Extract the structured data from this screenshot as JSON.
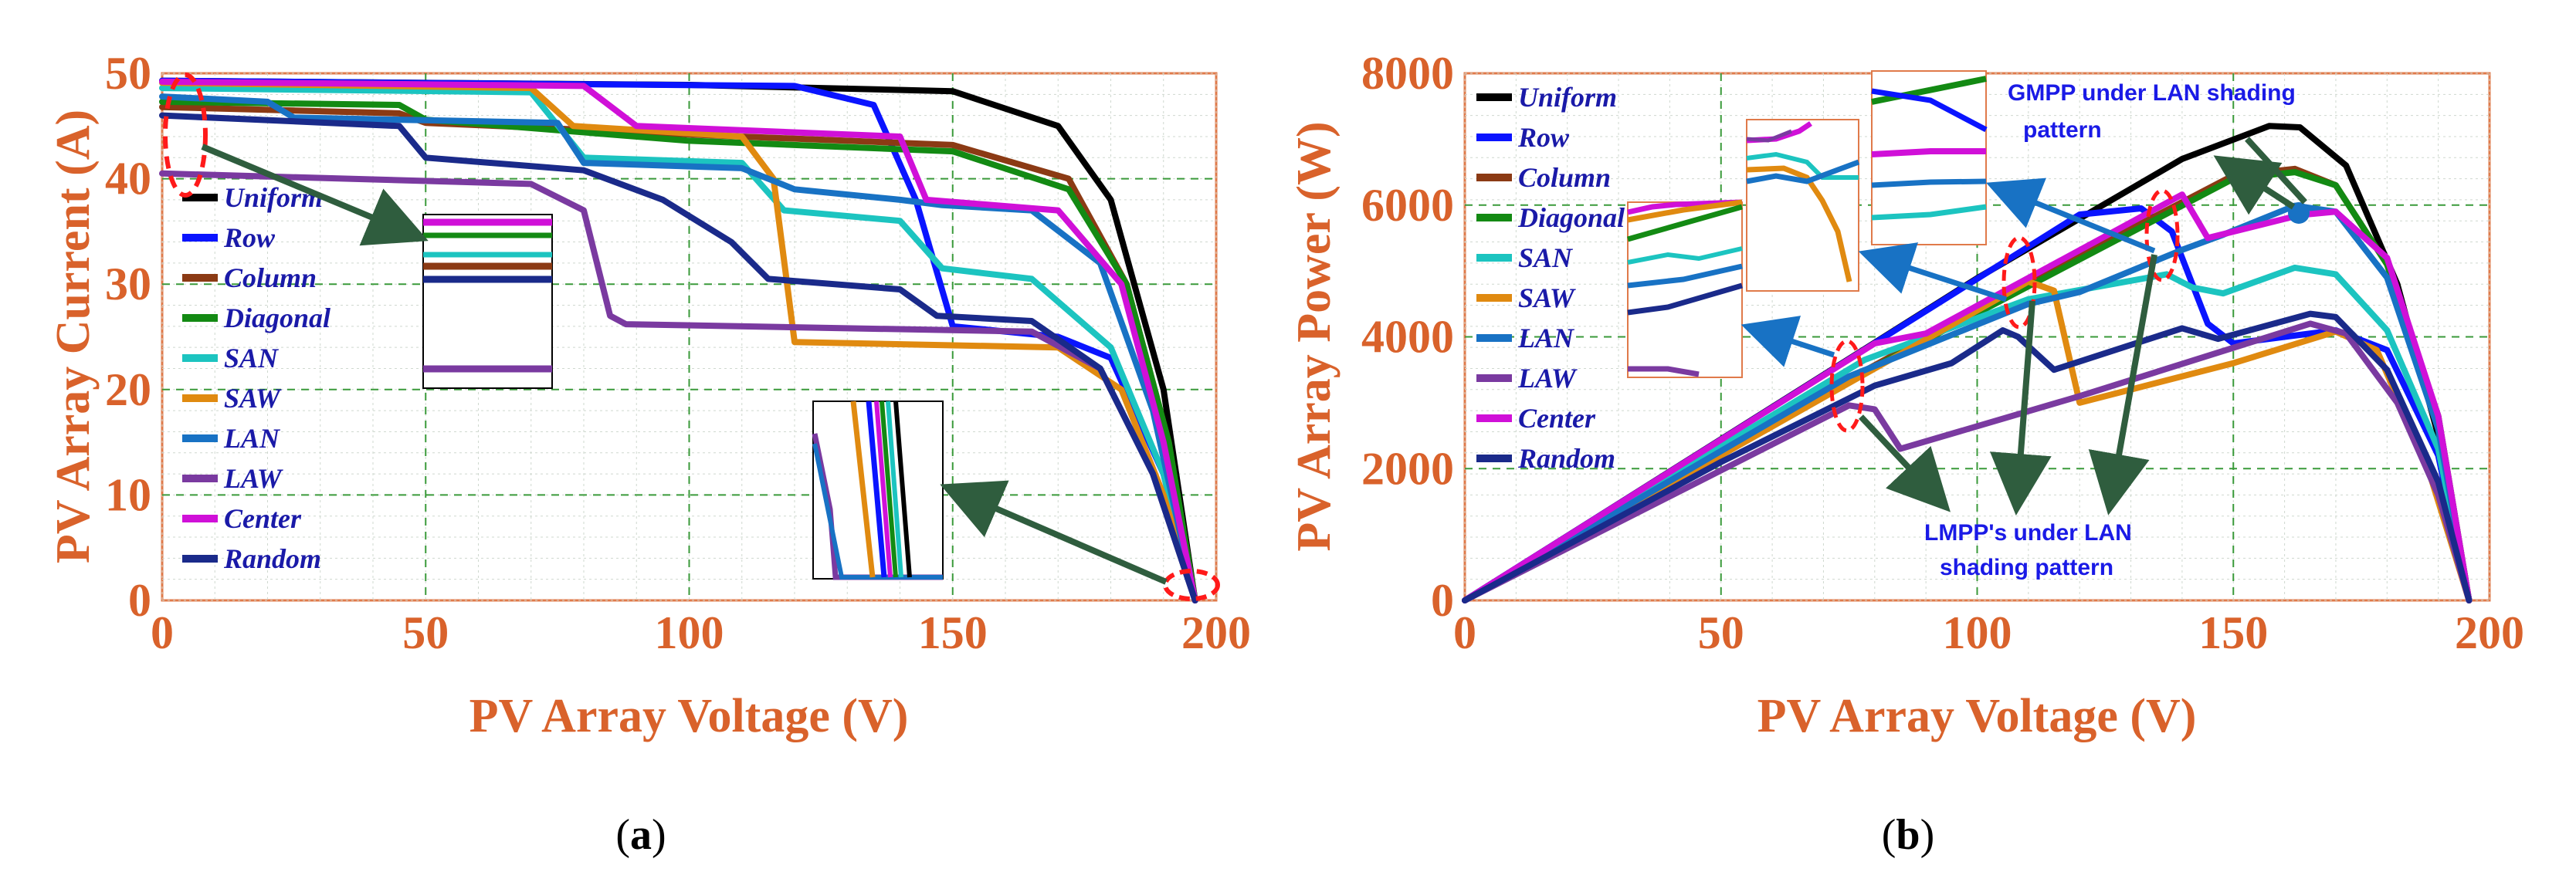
{
  "series_colors": {
    "Uniform": "#000000",
    "Row": "#0a14ff",
    "Column": "#8b3a14",
    "Diagonal": "#138a13",
    "SAN": "#1cc4c0",
    "SAW": "#e08a10",
    "LAN": "#1872c4",
    "LAW": "#7a3aa0",
    "Center": "#d010d8",
    "Random": "#1a2a8a"
  },
  "accent_colors": {
    "axis": "#d9622b",
    "arrow": "#2f5d3e",
    "highlight": "#ff1a1a",
    "grid_major": "#3a9a3a",
    "grid_minor": "#cfd8cf"
  },
  "chart_data": [
    {
      "type": "line",
      "panel_label": "a",
      "xlabel": "PV Array Voltage (V)",
      "ylabel": "PV Array Current (A)",
      "xlim": [
        0,
        200
      ],
      "ylim": [
        0,
        50
      ],
      "xticks": [
        "0",
        "50",
        "100",
        "150",
        "200"
      ],
      "yticks": [
        "0",
        "10",
        "20",
        "30",
        "40",
        "50"
      ],
      "grid": true,
      "legend": [
        "Uniform",
        "Row",
        "Column",
        "Diagonal",
        "SAN",
        "SAW",
        "LAN",
        "LAW",
        "Center",
        "Random"
      ],
      "series": [
        {
          "name": "Uniform",
          "points": [
            [
              0,
              49.3
            ],
            [
              100,
              48.9
            ],
            [
              150,
              48.3
            ],
            [
              170,
              45
            ],
            [
              180,
              38
            ],
            [
              190,
              20
            ],
            [
              196,
              0
            ]
          ]
        },
        {
          "name": "Row",
          "points": [
            [
              0,
              49.3
            ],
            [
              120,
              48.8
            ],
            [
              135,
              47
            ],
            [
              143,
              38
            ],
            [
              150,
              26
            ],
            [
              170,
              25
            ],
            [
              180,
              23
            ],
            [
              190,
              12
            ],
            [
              196,
              0
            ]
          ]
        },
        {
          "name": "Column",
          "points": [
            [
              0,
              46.8
            ],
            [
              45,
              46.2
            ],
            [
              50,
              45.3
            ],
            [
              100,
              44.2
            ],
            [
              150,
              43.2
            ],
            [
              172,
              40
            ],
            [
              183,
              30
            ],
            [
              191,
              15
            ],
            [
              196,
              0
            ]
          ]
        },
        {
          "name": "Diagonal",
          "points": [
            [
              0,
              47.3
            ],
            [
              45,
              47
            ],
            [
              50,
              45.6
            ],
            [
              100,
              43.6
            ],
            [
              150,
              42.6
            ],
            [
              172,
              39
            ],
            [
              183,
              30
            ],
            [
              191,
              15
            ],
            [
              196,
              0
            ]
          ]
        },
        {
          "name": "SAN",
          "points": [
            [
              0,
              48.6
            ],
            [
              70,
              48.2
            ],
            [
              80,
              42
            ],
            [
              110,
              41.5
            ],
            [
              118,
              37
            ],
            [
              140,
              36
            ],
            [
              148,
              31.5
            ],
            [
              165,
              30.5
            ],
            [
              180,
              24
            ],
            [
              190,
              12
            ],
            [
              196,
              0
            ]
          ]
        },
        {
          "name": "SAW",
          "points": [
            [
              0,
              49.1
            ],
            [
              70,
              48.6
            ],
            [
              78,
              45
            ],
            [
              110,
              44
            ],
            [
              116,
              40
            ],
            [
              120,
              24.5
            ],
            [
              170,
              24
            ],
            [
              182,
              20
            ],
            [
              190,
              10
            ],
            [
              196,
              0
            ]
          ]
        },
        {
          "name": "LAN",
          "points": [
            [
              0,
              47.8
            ],
            [
              20,
              47.3
            ],
            [
              25,
              45.8
            ],
            [
              75,
              45.3
            ],
            [
              80,
              41.5
            ],
            [
              110,
              41
            ],
            [
              120,
              39
            ],
            [
              140,
              38
            ],
            [
              148,
              37.5
            ],
            [
              165,
              37
            ],
            [
              178,
              32
            ],
            [
              188,
              18
            ],
            [
              196,
              0
            ]
          ]
        },
        {
          "name": "LAW",
          "points": [
            [
              0,
              40.5
            ],
            [
              70,
              39.5
            ],
            [
              80,
              37
            ],
            [
              85,
              27
            ],
            [
              88,
              26.2
            ],
            [
              165,
              25.5
            ],
            [
              178,
              22
            ],
            [
              188,
              12
            ],
            [
              196,
              0
            ]
          ]
        },
        {
          "name": "Center",
          "points": [
            [
              0,
              49.2
            ],
            [
              80,
              48.8
            ],
            [
              90,
              45
            ],
            [
              140,
              44
            ],
            [
              145,
              38
            ],
            [
              170,
              37
            ],
            [
              182,
              30
            ],
            [
              190,
              15
            ],
            [
              196,
              0
            ]
          ]
        },
        {
          "name": "Random",
          "points": [
            [
              0,
              46
            ],
            [
              45,
              45
            ],
            [
              50,
              42
            ],
            [
              80,
              40.8
            ],
            [
              95,
              38
            ],
            [
              108,
              34
            ],
            [
              115,
              30.5
            ],
            [
              140,
              29.5
            ],
            [
              147,
              27
            ],
            [
              165,
              26.5
            ],
            [
              178,
              22
            ],
            [
              188,
              12
            ],
            [
              196,
              0
            ]
          ]
        }
      ],
      "annotations": []
    },
    {
      "type": "line",
      "panel_label": "b",
      "xlabel": "PV Array Voltage (V)",
      "ylabel": "PV Array Power (W)",
      "xlim": [
        0,
        200
      ],
      "ylim": [
        0,
        8000
      ],
      "xticks": [
        "0",
        "50",
        "100",
        "150",
        "200"
      ],
      "yticks": [
        "0",
        "2000",
        "4000",
        "6000",
        "8000"
      ],
      "grid": true,
      "legend": [
        "Uniform",
        "Row",
        "Column",
        "Diagonal",
        "SAN",
        "SAW",
        "LAN",
        "LAW",
        "Center",
        "Random"
      ],
      "series": [
        {
          "name": "Uniform",
          "points": [
            [
              0,
              0
            ],
            [
              100,
              4890
            ],
            [
              140,
              6700
            ],
            [
              157,
              7200
            ],
            [
              163,
              7180
            ],
            [
              172,
              6600
            ],
            [
              182,
              4800
            ],
            [
              190,
              2500
            ],
            [
              196,
              0
            ]
          ]
        },
        {
          "name": "Row",
          "points": [
            [
              0,
              0
            ],
            [
              120,
              5856
            ],
            [
              132,
              5950
            ],
            [
              138,
              5600
            ],
            [
              145,
              4200
            ],
            [
              150,
              3900
            ],
            [
              170,
              4100
            ],
            [
              180,
              3800
            ],
            [
              190,
              2200
            ],
            [
              196,
              0
            ]
          ]
        },
        {
          "name": "Column",
          "points": [
            [
              0,
              0
            ],
            [
              50,
              2290
            ],
            [
              100,
              4420
            ],
            [
              150,
              6450
            ],
            [
              162,
              6550
            ],
            [
              170,
              6300
            ],
            [
              180,
              5100
            ],
            [
              190,
              2800
            ],
            [
              196,
              0
            ]
          ]
        },
        {
          "name": "Diagonal",
          "points": [
            [
              0,
              0
            ],
            [
              50,
              2330
            ],
            [
              100,
              4360
            ],
            [
              150,
              6400
            ],
            [
              162,
              6500
            ],
            [
              170,
              6300
            ],
            [
              180,
              5100
            ],
            [
              190,
              2800
            ],
            [
              196,
              0
            ]
          ]
        },
        {
          "name": "SAN",
          "points": [
            [
              0,
              0
            ],
            [
              78,
              3650
            ],
            [
              110,
              4570
            ],
            [
              137,
              4950
            ],
            [
              142,
              4750
            ],
            [
              148,
              4660
            ],
            [
              162,
              5050
            ],
            [
              170,
              4950
            ],
            [
              180,
              4100
            ],
            [
              190,
              2300
            ],
            [
              196,
              0
            ]
          ]
        },
        {
          "name": "SAW",
          "points": [
            [
              0,
              0
            ],
            [
              110,
              4840
            ],
            [
              115,
              4700
            ],
            [
              120,
              3000
            ],
            [
              150,
              3600
            ],
            [
              170,
              4080
            ],
            [
              178,
              3800
            ],
            [
              188,
              2000
            ],
            [
              196,
              0
            ]
          ]
        },
        {
          "name": "LAN",
          "points": [
            [
              0,
              0
            ],
            [
              75,
              3400
            ],
            [
              110,
              4500
            ],
            [
              120,
              4680
            ],
            [
              140,
              5320
            ],
            [
              148,
              5550
            ],
            [
              162,
              5990
            ],
            [
              170,
              5900
            ],
            [
              180,
              4900
            ],
            [
              190,
              2600
            ],
            [
              196,
              0
            ]
          ]
        },
        {
          "name": "LAW",
          "points": [
            [
              0,
              0
            ],
            [
              75,
              2960
            ],
            [
              80,
              2900
            ],
            [
              85,
              2300
            ],
            [
              120,
              3100
            ],
            [
              165,
              4200
            ],
            [
              172,
              4050
            ],
            [
              182,
              3000
            ],
            [
              190,
              1600
            ],
            [
              196,
              0
            ]
          ]
        },
        {
          "name": "Center",
          "points": [
            [
              0,
              0
            ],
            [
              80,
              3900
            ],
            [
              90,
              4050
            ],
            [
              140,
              6160
            ],
            [
              145,
              5500
            ],
            [
              163,
              5850
            ],
            [
              170,
              5900
            ],
            [
              180,
              5200
            ],
            [
              190,
              2800
            ],
            [
              196,
              0
            ]
          ]
        },
        {
          "name": "Random",
          "points": [
            [
              0,
              0
            ],
            [
              50,
              2100
            ],
            [
              80,
              3260
            ],
            [
              95,
              3600
            ],
            [
              105,
              4100
            ],
            [
              108,
              4000
            ],
            [
              115,
              3500
            ],
            [
              140,
              4130
            ],
            [
              147,
              3970
            ],
            [
              165,
              4350
            ],
            [
              170,
              4300
            ],
            [
              180,
              3500
            ],
            [
              190,
              1800
            ],
            [
              196,
              0
            ]
          ]
        }
      ],
      "annotations": [
        "GMPP under LAN shading pattern",
        "LMPP's under LAN shading pattern"
      ]
    }
  ],
  "captions": [
    {
      "open": "(",
      "letter": "a",
      "close": ")"
    },
    {
      "open": "(",
      "letter": "b",
      "close": ")"
    }
  ]
}
